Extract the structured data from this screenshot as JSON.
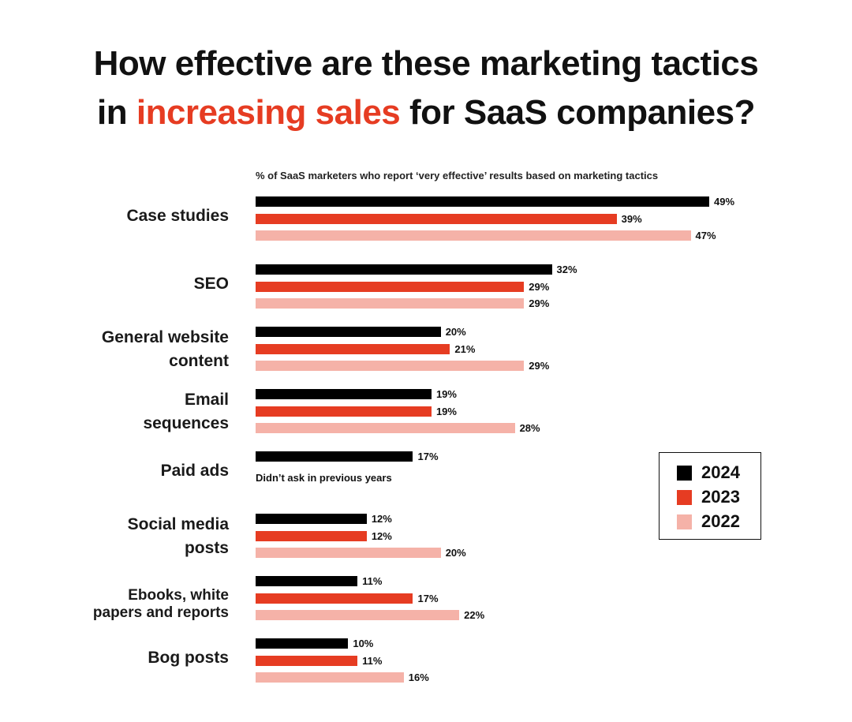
{
  "title": {
    "line1": "How effective are these marketing tactics",
    "line2_pre": "in ",
    "line2_highlight": "increasing sales",
    "line2_post": " for SaaS companies?"
  },
  "colors": {
    "2024": "#000000",
    "2023": "#e63c22",
    "2022": "#f5b2a8",
    "highlight": "#e63c22"
  },
  "chart_data": {
    "type": "bar",
    "orientation": "horizontal",
    "subtitle": "% of SaaS marketers who report ‘very effective’ results based on marketing tactics",
    "categories": [
      "Case studies",
      "SEO",
      "General website content",
      "Email sequences",
      "Paid ads",
      "Social media posts",
      "Ebooks, white papers and reports",
      "Bog posts"
    ],
    "series": [
      {
        "name": "2024",
        "values": [
          49,
          32,
          20,
          19,
          17,
          12,
          11,
          10
        ]
      },
      {
        "name": "2023",
        "values": [
          39,
          29,
          21,
          19,
          null,
          12,
          17,
          11
        ]
      },
      {
        "name": "2022",
        "values": [
          47,
          29,
          29,
          28,
          null,
          20,
          22,
          16
        ]
      }
    ],
    "value_labels": {
      "2024": [
        "49%",
        "32%",
        "20%",
        "19%",
        "17%",
        "12%",
        "11%",
        "10%"
      ],
      "2023": [
        "39%",
        "29%",
        "21%",
        "19%",
        "",
        "12%",
        "17%",
        "11%"
      ],
      "2022": [
        "47%",
        "29%",
        "29%",
        "28%",
        "",
        "20%",
        "22%",
        "16%"
      ]
    },
    "notes": [
      {
        "category": "Paid ads",
        "text": "Didn’t ask in previous years"
      }
    ],
    "legend": {
      "placement": "right",
      "entries": [
        "2024",
        "2023",
        "2022"
      ]
    },
    "grid": false
  }
}
